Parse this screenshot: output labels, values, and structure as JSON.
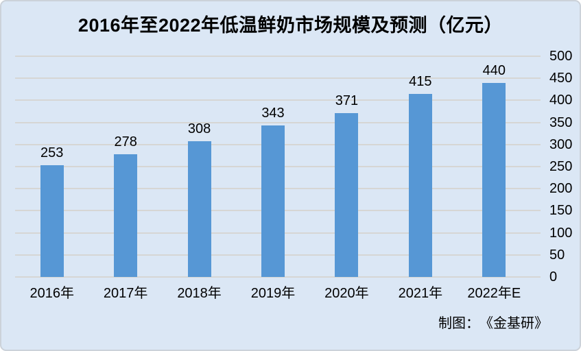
{
  "title": "2016年至2022年低温鲜奶市场规模及预测（亿元）",
  "footer": {
    "credit": "制图：　《金基研》"
  },
  "colors": {
    "background": "#dbe7f5",
    "border": "#ccd2d9",
    "bar": "#5697d5",
    "gridline": "#d6d6d4",
    "text": "#000000"
  },
  "chart_data": {
    "type": "bar",
    "title": "2016年至2022年低温鲜奶市场规模及预测（亿元）",
    "categories": [
      "2016年",
      "2017年",
      "2018年",
      "2019年",
      "2020年",
      "2021年",
      "2022年E"
    ],
    "values": [
      253,
      278,
      308,
      343,
      371,
      415,
      440
    ],
    "value_labels_shown": true,
    "xlabel": "",
    "ylabel": "",
    "ylim": [
      0,
      500
    ],
    "ytick_step": 50,
    "yaxis_side": "right",
    "grid": true,
    "legend": "none"
  }
}
